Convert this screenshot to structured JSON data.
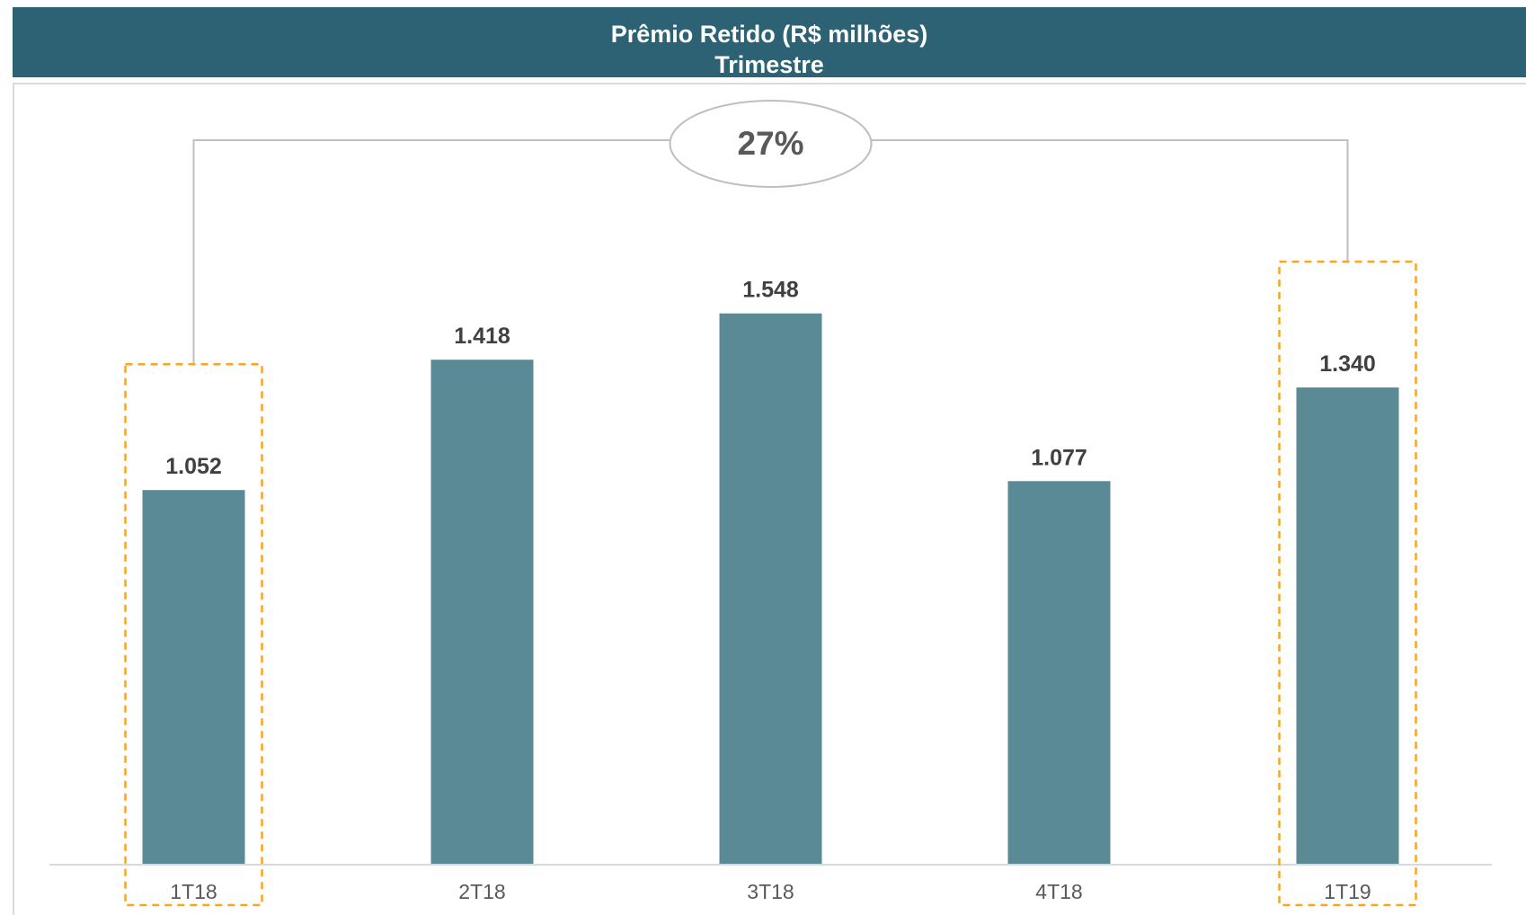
{
  "header": {
    "title_line1": "Prêmio Retido (R$ milhões)",
    "title_line2": "Trimestre"
  },
  "growth": {
    "label": "27%",
    "from": "1T18",
    "to": "1T19"
  },
  "colors": {
    "header": "#2c6274",
    "bar": "#5a8a95",
    "highlight": "#f5a623",
    "bracket": "#bfbfbf"
  },
  "chart_data": {
    "type": "bar",
    "title": "Prêmio Retido (R$ milhões)",
    "subtitle": "Trimestre",
    "categories": [
      "1T18",
      "2T18",
      "3T18",
      "4T18",
      "1T19"
    ],
    "values": [
      1052,
      1418,
      1548,
      1077,
      1340
    ],
    "data_labels": [
      "1.052",
      "1.418",
      "1.548",
      "1.077",
      "1.340"
    ],
    "highlighted": [
      "1T18",
      "1T19"
    ],
    "xlabel": "",
    "ylabel": "",
    "ylim": [
      0,
      2100
    ],
    "grid": false,
    "legend": "none"
  }
}
